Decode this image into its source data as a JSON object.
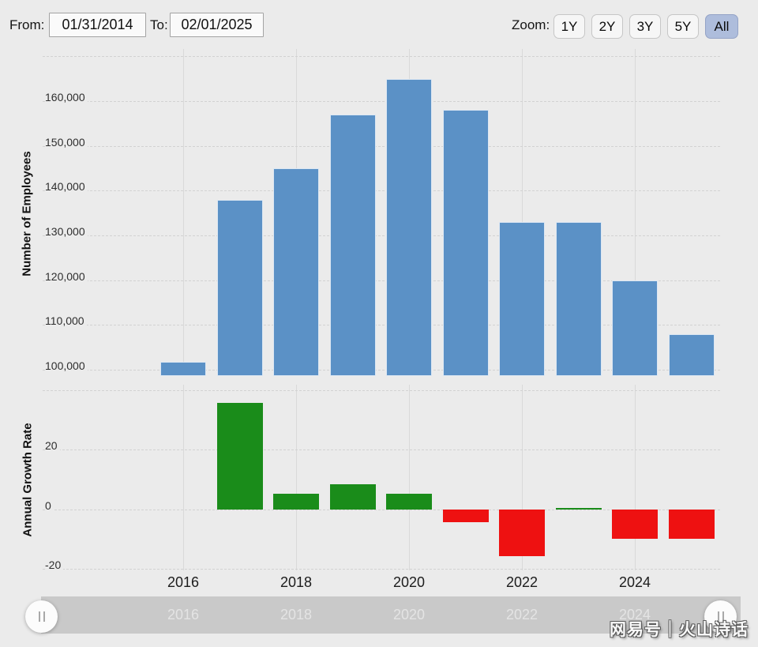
{
  "toolbar": {
    "from_label": "From:",
    "from_value": "01/31/2014",
    "to_label": "To:",
    "to_value": "02/01/2025",
    "zoom_label": "Zoom:",
    "zoom_buttons": [
      {
        "label": "1Y",
        "active": false
      },
      {
        "label": "2Y",
        "active": false
      },
      {
        "label": "3Y",
        "active": false
      },
      {
        "label": "5Y",
        "active": false
      },
      {
        "label": "All",
        "active": true
      }
    ]
  },
  "chart_data": [
    {
      "type": "bar",
      "id": "employees",
      "title": "",
      "ylabel": "Number of Employees",
      "xlabel": "",
      "categories": [
        2016,
        2017,
        2018,
        2019,
        2020,
        2021,
        2022,
        2023,
        2024,
        2025
      ],
      "values": [
        101800,
        138000,
        145000,
        157000,
        165000,
        158000,
        133000,
        133000,
        120000,
        108000
      ],
      "ylim": [
        98600,
        171650
      ],
      "yticks_labeled": [
        100000,
        110000,
        120000,
        130000,
        140000,
        150000,
        160000
      ],
      "yticks_unlabeled": [
        170000
      ],
      "ytick_format": "comma",
      "bar_color": "#5b91c6",
      "grid": true,
      "legend": "none"
    },
    {
      "type": "bar",
      "id": "growth",
      "title": "",
      "ylabel": "Annual Growth Rate",
      "xlabel": "",
      "categories": [
        2017,
        2018,
        2019,
        2020,
        2021,
        2022,
        2023,
        2024,
        2025
      ],
      "values": [
        35.6,
        5.1,
        8.3,
        5.1,
        -4.2,
        -15.8,
        0,
        -9.8,
        -10
      ],
      "ylim": [
        -20.5,
        41.8
      ],
      "yticks_labeled": [
        20,
        0,
        -20
      ],
      "yticks_unlabeled": [
        40
      ],
      "ytick_format": "plain",
      "positive_color": "#1a8c1a",
      "negative_color": "#ee1111",
      "grid": true,
      "legend": "none"
    }
  ],
  "xaxis": {
    "ticks": [
      2016,
      2018,
      2020,
      2022,
      2024
    ]
  },
  "navigator": {
    "labels": [
      2016,
      2018,
      2020,
      2022,
      2024
    ]
  },
  "watermark": {
    "text": "网易号｜火山诗话"
  }
}
